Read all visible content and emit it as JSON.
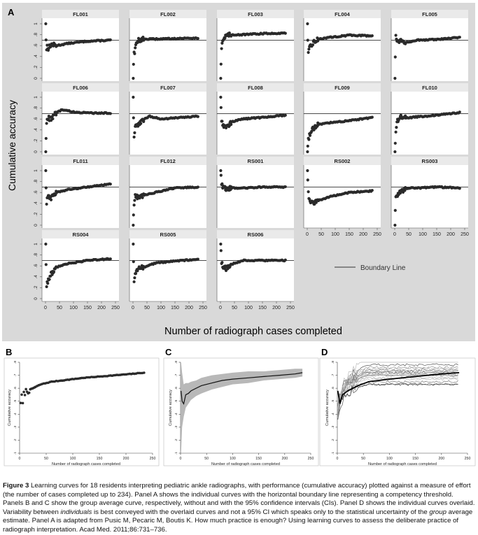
{
  "panelA": {
    "letter": "A",
    "ylabel": "Cumulative accuracy",
    "xlabel": "Number of radiograph cases completed",
    "legend": "Boundary Line",
    "boundary": 0.7,
    "yticks": [
      "0",
      ".2",
      ".4",
      ".6",
      ".8",
      "1"
    ],
    "xticks": [
      "0",
      "50",
      "100",
      "150",
      "200",
      "250"
    ]
  },
  "panelB": {
    "letter": "B",
    "ylabel": "Cumulative accuracy",
    "xlabel": "Number of radiograph cases completed",
    "yticks": [
      ".1",
      ".2",
      ".3",
      ".4",
      ".5",
      ".6",
      ".7",
      ".8"
    ],
    "xticks": [
      "0",
      "50",
      "100",
      "150",
      "200",
      "250"
    ]
  },
  "panelC": {
    "letter": "C",
    "ylabel": "Cumulative accuracy",
    "xlabel": "Number of radiograph cases completed",
    "yticks": [
      ".1",
      ".2",
      ".3",
      ".4",
      ".5",
      ".6",
      ".7",
      ".8"
    ],
    "xticks": [
      "0",
      "50",
      "100",
      "150",
      "200",
      "250"
    ]
  },
  "panelD": {
    "letter": "D",
    "ylabel": "Cumulative accuracy",
    "xlabel": "Number of radiograph cases completed",
    "yticks": [
      ".1",
      ".2",
      ".3",
      ".4",
      ".5",
      ".6",
      ".7",
      ".8"
    ],
    "xticks": [
      "0",
      "50",
      "100",
      "150",
      "200",
      "250"
    ]
  },
  "caption": {
    "label": "Figure 3",
    "text1": " Learning curves for 18 residents interpreting pediatric ankle radiographs, with performance (cumulative accuracy) plotted against a measure of effort (the number of cases completed up to 234). Panel A shows the individual curves with the horizontal boundary line representing a competency threshold. Panels B and C show the group average curve, respectively, without and with the 95% confidence intervals (CIs). Panel D shows the individual curves overlaid. Variability between ",
    "em1": "individuals",
    "text2": " is best conveyed with the overlaid curves and not a 95% CI which speaks only to the statistical uncertainty of the ",
    "em2": "group",
    "text3": " average estimate. Panel A is adapted from Pusic M, Pecaric M, Boutis K. How much practice is enough? Using learning curves to assess the deliberate practice of radiograph interpretation. Acad Med. 2011;86:731–736."
  },
  "chart_data": [
    {
      "panel": "A",
      "type": "scatter",
      "xlabel": "Number of radiograph cases completed",
      "ylabel": "Cumulative accuracy",
      "xlim": [
        0,
        250
      ],
      "ylim": [
        0,
        1
      ],
      "boundary_line": 0.7,
      "series": [
        {
          "name": "FL001",
          "points": [
            [
              1,
              1
            ],
            [
              3,
              0.45
            ],
            [
              5,
              0.6
            ],
            [
              10,
              0.55
            ],
            [
              20,
              0.62
            ],
            [
              40,
              0.6
            ],
            [
              80,
              0.64
            ],
            [
              150,
              0.68
            ],
            [
              234,
              0.7
            ]
          ]
        },
        {
          "name": "FL002",
          "points": [
            [
              1,
              0
            ],
            [
              3,
              0.55
            ],
            [
              5,
              0.45
            ],
            [
              10,
              0.6
            ],
            [
              20,
              0.7
            ],
            [
              40,
              0.72
            ],
            [
              80,
              0.72
            ],
            [
              150,
              0.73
            ],
            [
              234,
              0.74
            ]
          ]
        },
        {
          "name": "FL003",
          "points": [
            [
              1,
              0
            ],
            [
              3,
              0.55
            ],
            [
              8,
              0.7
            ],
            [
              20,
              0.78
            ],
            [
              40,
              0.8
            ],
            [
              80,
              0.8
            ],
            [
              150,
              0.82
            ],
            [
              234,
              0.83
            ]
          ]
        },
        {
          "name": "FL004",
          "points": [
            [
              1,
              1
            ],
            [
              3,
              0.42
            ],
            [
              8,
              0.55
            ],
            [
              20,
              0.65
            ],
            [
              40,
              0.72
            ],
            [
              80,
              0.75
            ],
            [
              150,
              0.79
            ],
            [
              234,
              0.78
            ]
          ]
        },
        {
          "name": "FL005",
          "points": [
            [
              1,
              0
            ],
            [
              3,
              0.8
            ],
            [
              8,
              0.68
            ],
            [
              20,
              0.7
            ],
            [
              40,
              0.66
            ],
            [
              80,
              0.7
            ],
            [
              150,
              0.71
            ],
            [
              234,
              0.75
            ]
          ]
        },
        {
          "name": "FL006",
          "points": [
            [
              1,
              0
            ],
            [
              3,
              0.5
            ],
            [
              8,
              0.62
            ],
            [
              20,
              0.6
            ],
            [
              40,
              0.72
            ],
            [
              60,
              0.77
            ],
            [
              100,
              0.73
            ],
            [
              150,
              0.71
            ],
            [
              234,
              0.71
            ]
          ]
        },
        {
          "name": "FL007",
          "points": [
            [
              1,
              1
            ],
            [
              3,
              0.25
            ],
            [
              8,
              0.45
            ],
            [
              20,
              0.5
            ],
            [
              40,
              0.6
            ],
            [
              60,
              0.65
            ],
            [
              100,
              0.6
            ],
            [
              150,
              0.62
            ],
            [
              234,
              0.65
            ]
          ]
        },
        {
          "name": "FL008",
          "points": [
            [
              1,
              1
            ],
            [
              3,
              0.62
            ],
            [
              8,
              0.5
            ],
            [
              20,
              0.45
            ],
            [
              40,
              0.55
            ],
            [
              80,
              0.6
            ],
            [
              150,
              0.63
            ],
            [
              234,
              0.67
            ]
          ]
        },
        {
          "name": "FL009",
          "points": [
            [
              1,
              0
            ],
            [
              3,
              0.2
            ],
            [
              8,
              0.3
            ],
            [
              20,
              0.42
            ],
            [
              40,
              0.5
            ],
            [
              80,
              0.53
            ],
            [
              150,
              0.57
            ],
            [
              234,
              0.63
            ]
          ]
        },
        {
          "name": "FL010",
          "points": [
            [
              1,
              0
            ],
            [
              3,
              0.3
            ],
            [
              8,
              0.55
            ],
            [
              20,
              0.65
            ],
            [
              40,
              0.62
            ],
            [
              80,
              0.64
            ],
            [
              150,
              0.67
            ],
            [
              234,
              0.72
            ]
          ]
        },
        {
          "name": "FL011",
          "points": [
            [
              1,
              1
            ],
            [
              3,
              0.35
            ],
            [
              8,
              0.55
            ],
            [
              20,
              0.5
            ],
            [
              40,
              0.6
            ],
            [
              80,
              0.65
            ],
            [
              150,
              0.7
            ],
            [
              234,
              0.76
            ]
          ]
        },
        {
          "name": "FL012",
          "points": [
            [
              1,
              0
            ],
            [
              3,
              0.35
            ],
            [
              8,
              0.55
            ],
            [
              20,
              0.5
            ],
            [
              40,
              0.55
            ],
            [
              80,
              0.6
            ],
            [
              150,
              0.68
            ],
            [
              234,
              0.7
            ]
          ]
        },
        {
          "name": "RS001",
          "points": [
            [
              1,
              1
            ],
            [
              3,
              0.8
            ],
            [
              8,
              0.7
            ],
            [
              20,
              0.66
            ],
            [
              40,
              0.68
            ],
            [
              80,
              0.68
            ],
            [
              150,
              0.7
            ],
            [
              234,
              0.7
            ]
          ]
        },
        {
          "name": "RS002",
          "points": [
            [
              1,
              1
            ],
            [
              3,
              0.62
            ],
            [
              8,
              0.45
            ],
            [
              20,
              0.4
            ],
            [
              40,
              0.45
            ],
            [
              80,
              0.52
            ],
            [
              150,
              0.6
            ],
            [
              234,
              0.63
            ]
          ]
        },
        {
          "name": "RS003",
          "points": [
            [
              1,
              0
            ],
            [
              3,
              0.5
            ],
            [
              8,
              0.55
            ],
            [
              20,
              0.6
            ],
            [
              40,
              0.68
            ],
            [
              80,
              0.68
            ],
            [
              150,
              0.7
            ],
            [
              234,
              0.68
            ]
          ]
        },
        {
          "name": "RS004",
          "points": [
            [
              1,
              1
            ],
            [
              3,
              0.2
            ],
            [
              8,
              0.32
            ],
            [
              20,
              0.45
            ],
            [
              40,
              0.58
            ],
            [
              80,
              0.64
            ],
            [
              150,
              0.7
            ],
            [
              234,
              0.73
            ]
          ]
        },
        {
          "name": "RS005",
          "points": [
            [
              1,
              1
            ],
            [
              3,
              0.3
            ],
            [
              8,
              0.45
            ],
            [
              20,
              0.55
            ],
            [
              40,
              0.58
            ],
            [
              80,
              0.65
            ],
            [
              150,
              0.69
            ],
            [
              234,
              0.72
            ]
          ]
        },
        {
          "name": "RS006",
          "points": [
            [
              1,
              1
            ],
            [
              3,
              0.7
            ],
            [
              8,
              0.6
            ],
            [
              20,
              0.55
            ],
            [
              40,
              0.63
            ],
            [
              80,
              0.7
            ],
            [
              150,
              0.7
            ],
            [
              234,
              0.7
            ]
          ]
        }
      ]
    },
    {
      "panel": "B",
      "type": "scatter",
      "xlabel": "Number of radiograph cases completed",
      "ylabel": "Cumulative accuracy",
      "xlim": [
        0,
        250
      ],
      "ylim": [
        0.1,
        0.8
      ],
      "points": [
        [
          2,
          0.5
        ],
        [
          4,
          0.53
        ],
        [
          6,
          0.48
        ],
        [
          8,
          0.55
        ],
        [
          10,
          0.57
        ],
        [
          14,
          0.58
        ],
        [
          20,
          0.59
        ],
        [
          30,
          0.61
        ],
        [
          40,
          0.63
        ],
        [
          60,
          0.65
        ],
        [
          80,
          0.66
        ],
        [
          100,
          0.67
        ],
        [
          120,
          0.68
        ],
        [
          150,
          0.69
        ],
        [
          180,
          0.7
        ],
        [
          210,
          0.71
        ],
        [
          234,
          0.72
        ]
      ]
    },
    {
      "panel": "C",
      "type": "line",
      "xlabel": "Number of radiograph cases completed",
      "ylabel": "Cumulative accuracy",
      "xlim": [
        0,
        250
      ],
      "ylim": [
        0.1,
        0.8
      ],
      "x": [
        1,
        3,
        6,
        10,
        15,
        20,
        30,
        40,
        60,
        80,
        100,
        130,
        160,
        190,
        220,
        234
      ],
      "mean": [
        0.58,
        0.5,
        0.48,
        0.55,
        0.56,
        0.58,
        0.6,
        0.62,
        0.64,
        0.66,
        0.67,
        0.68,
        0.69,
        0.7,
        0.71,
        0.72
      ],
      "lower": [
        0.1,
        0.3,
        0.38,
        0.45,
        0.48,
        0.51,
        0.54,
        0.56,
        0.59,
        0.61,
        0.63,
        0.64,
        0.66,
        0.67,
        0.68,
        0.69
      ],
      "upper": [
        0.8,
        0.72,
        0.63,
        0.64,
        0.64,
        0.65,
        0.66,
        0.68,
        0.7,
        0.71,
        0.72,
        0.73,
        0.73,
        0.74,
        0.75,
        0.75
      ]
    },
    {
      "panel": "D",
      "type": "line",
      "xlabel": "Number of radiograph cases completed",
      "ylabel": "Cumulative accuracy",
      "xlim": [
        0,
        250
      ],
      "ylim": [
        0.1,
        0.8
      ],
      "mean": {
        "x": [
          1,
          5,
          10,
          20,
          40,
          60,
          100,
          150,
          200,
          234
        ],
        "y": [
          0.58,
          0.48,
          0.55,
          0.58,
          0.62,
          0.65,
          0.67,
          0.69,
          0.71,
          0.72
        ]
      },
      "individual_endpoints_at_234": [
        0.7,
        0.74,
        0.83,
        0.78,
        0.75,
        0.71,
        0.65,
        0.67,
        0.63,
        0.72,
        0.76,
        0.7,
        0.7,
        0.63,
        0.68,
        0.73,
        0.72,
        0.7
      ]
    }
  ]
}
